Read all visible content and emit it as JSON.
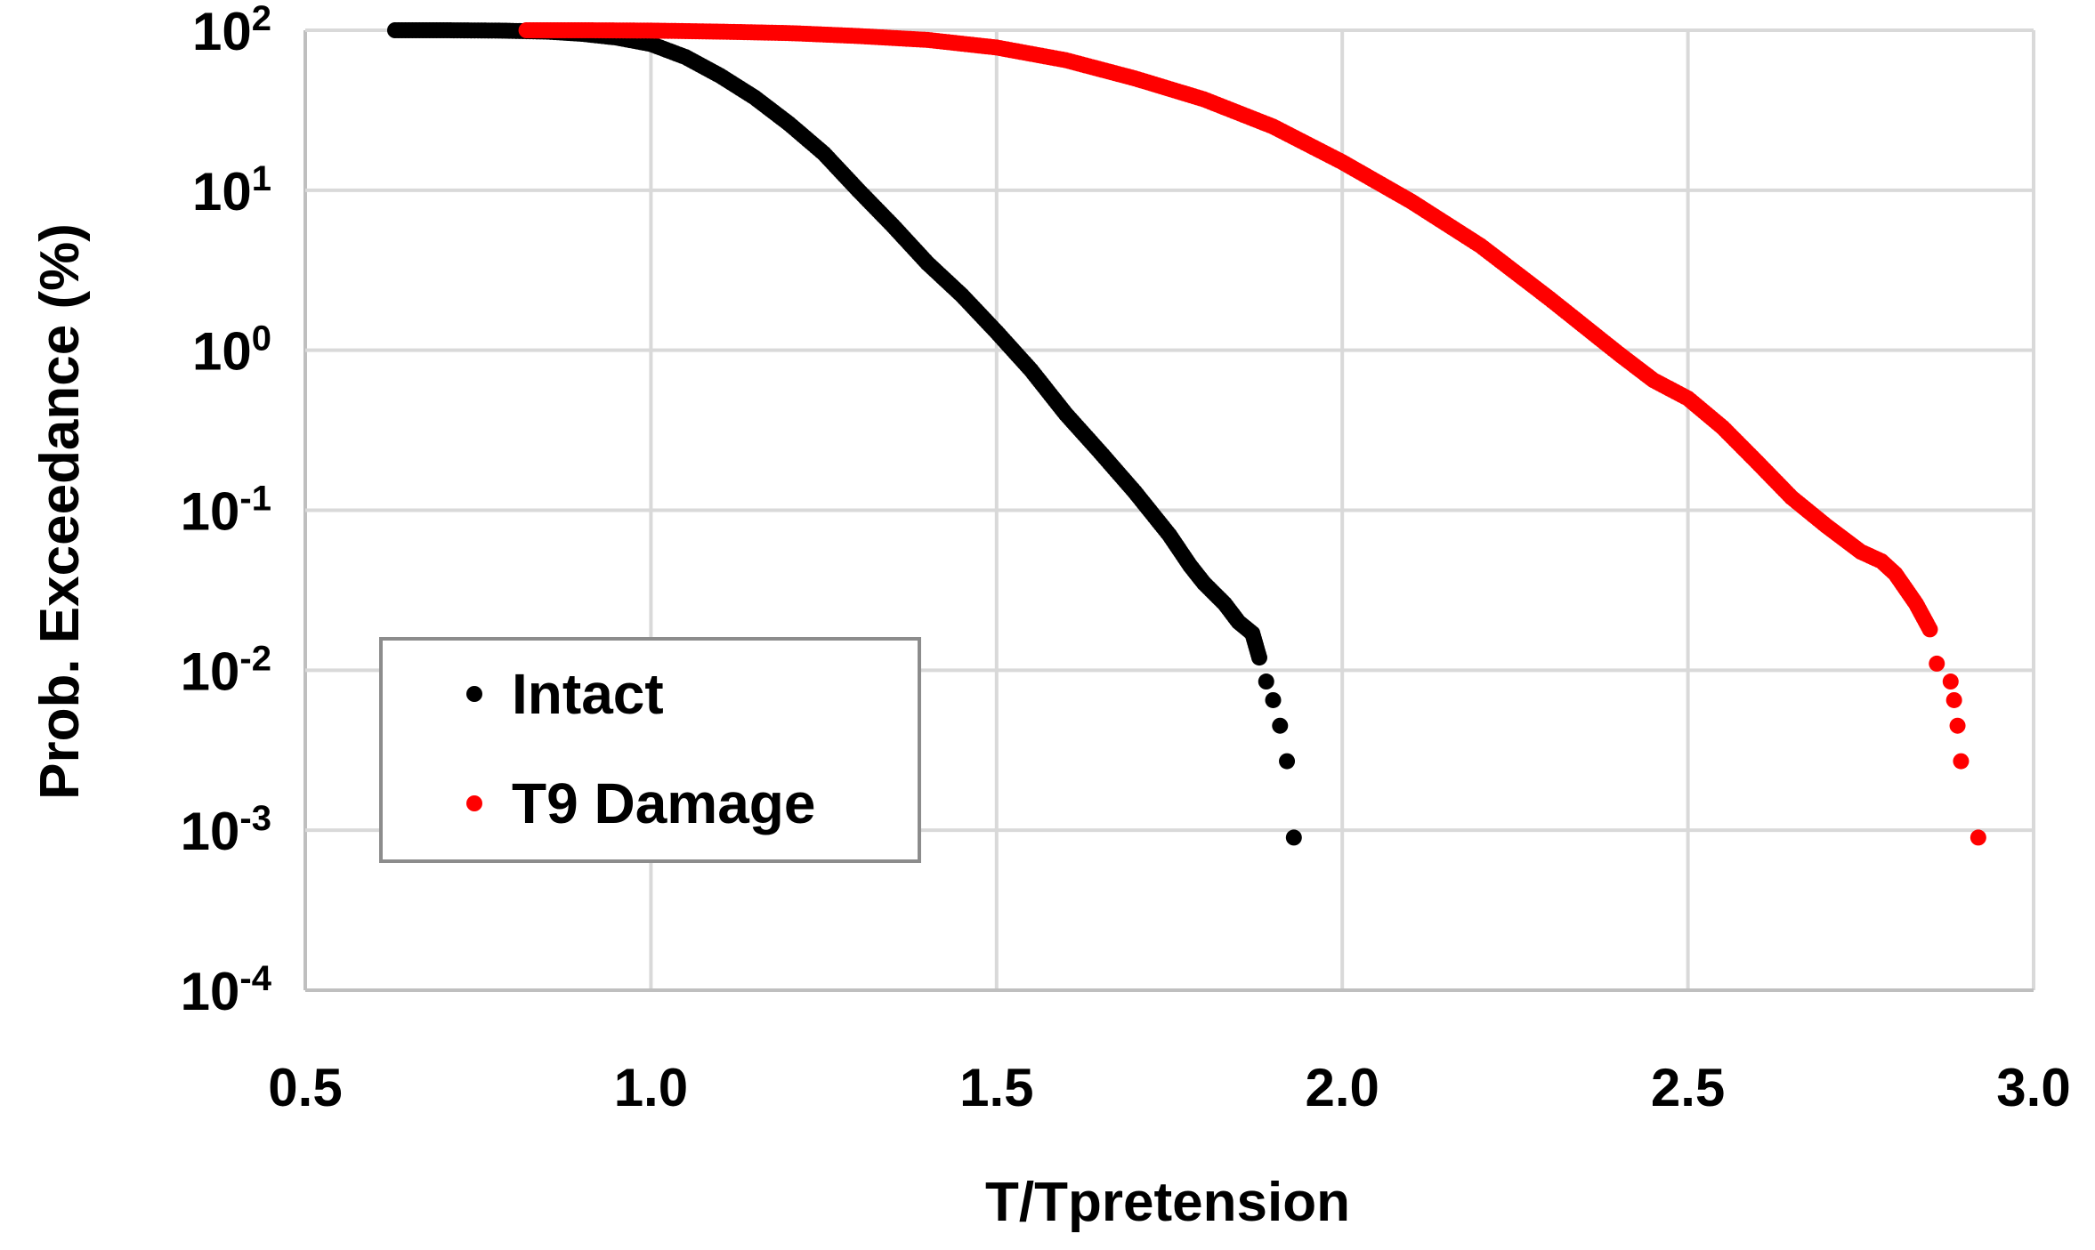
{
  "chart_data": {
    "type": "scatter",
    "title": "",
    "xlabel": "T/Tpretension",
    "ylabel": "Prob. Exceedance (%)",
    "xlim": [
      0.5,
      3.0
    ],
    "ylim": [
      0.0001,
      100
    ],
    "yscale": "log",
    "grid": true,
    "legend_position": "bottom-left",
    "x_ticks": [
      "0.5",
      "1.0",
      "1.5",
      "2.0",
      "2.5",
      "3.0"
    ],
    "y_ticks": [
      {
        "base": "10",
        "exp": "2"
      },
      {
        "base": "10",
        "exp": "1"
      },
      {
        "base": "10",
        "exp": "0"
      },
      {
        "base": "10",
        "exp": "-1"
      },
      {
        "base": "10",
        "exp": "-2"
      },
      {
        "base": "10",
        "exp": "-3"
      },
      {
        "base": "10",
        "exp": "-4"
      }
    ],
    "series": [
      {
        "name": "Intact",
        "color": "#000000",
        "points": [
          [
            0.63,
            100
          ],
          [
            0.7,
            100
          ],
          [
            0.78,
            99.5
          ],
          [
            0.85,
            98
          ],
          [
            0.9,
            95
          ],
          [
            0.95,
            90
          ],
          [
            1.0,
            82
          ],
          [
            1.05,
            68
          ],
          [
            1.1,
            52
          ],
          [
            1.15,
            38
          ],
          [
            1.2,
            26
          ],
          [
            1.25,
            17
          ],
          [
            1.3,
            10
          ],
          [
            1.35,
            6.0
          ],
          [
            1.4,
            3.5
          ],
          [
            1.45,
            2.2
          ],
          [
            1.5,
            1.3
          ],
          [
            1.55,
            0.75
          ],
          [
            1.6,
            0.4
          ],
          [
            1.65,
            0.23
          ],
          [
            1.7,
            0.13
          ],
          [
            1.75,
            0.07
          ],
          [
            1.78,
            0.045
          ],
          [
            1.8,
            0.035
          ],
          [
            1.83,
            0.026
          ],
          [
            1.85,
            0.02
          ],
          [
            1.87,
            0.017
          ],
          [
            1.88,
            0.012
          ],
          [
            1.89,
            0.0085
          ],
          [
            1.9,
            0.0065
          ],
          [
            1.91,
            0.0045
          ],
          [
            1.92,
            0.0027
          ],
          [
            1.93,
            0.0009
          ]
        ]
      },
      {
        "name": "T9 Damage",
        "color": "#ff0000",
        "points": [
          [
            0.82,
            100
          ],
          [
            0.9,
            100
          ],
          [
            1.0,
            99.5
          ],
          [
            1.1,
            98
          ],
          [
            1.2,
            96
          ],
          [
            1.3,
            92
          ],
          [
            1.4,
            87
          ],
          [
            1.5,
            78
          ],
          [
            1.6,
            65
          ],
          [
            1.7,
            50
          ],
          [
            1.8,
            37
          ],
          [
            1.9,
            25
          ],
          [
            2.0,
            15
          ],
          [
            2.1,
            8.5
          ],
          [
            2.2,
            4.5
          ],
          [
            2.3,
            2.1
          ],
          [
            2.4,
            0.95
          ],
          [
            2.45,
            0.65
          ],
          [
            2.5,
            0.5
          ],
          [
            2.55,
            0.33
          ],
          [
            2.6,
            0.2
          ],
          [
            2.65,
            0.12
          ],
          [
            2.7,
            0.08
          ],
          [
            2.75,
            0.055
          ],
          [
            2.78,
            0.048
          ],
          [
            2.8,
            0.04
          ],
          [
            2.83,
            0.026
          ],
          [
            2.85,
            0.018
          ],
          [
            2.86,
            0.011
          ],
          [
            2.88,
            0.0085
          ],
          [
            2.885,
            0.0065
          ],
          [
            2.89,
            0.0045
          ],
          [
            2.895,
            0.0027
          ],
          [
            2.92,
            0.0009
          ]
        ]
      }
    ]
  }
}
